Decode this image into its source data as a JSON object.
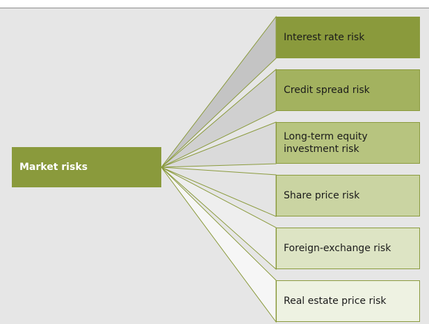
{
  "root": {
    "label": "Market risks"
  },
  "nodes": [
    {
      "label": "Interest rate risk"
    },
    {
      "label": "Credit spread risk"
    },
    {
      "label": "Long-term equity investment risk"
    },
    {
      "label": "Share price risk"
    },
    {
      "label": "Foreign-exchange risk"
    },
    {
      "label": "Real estate price risk"
    }
  ]
}
